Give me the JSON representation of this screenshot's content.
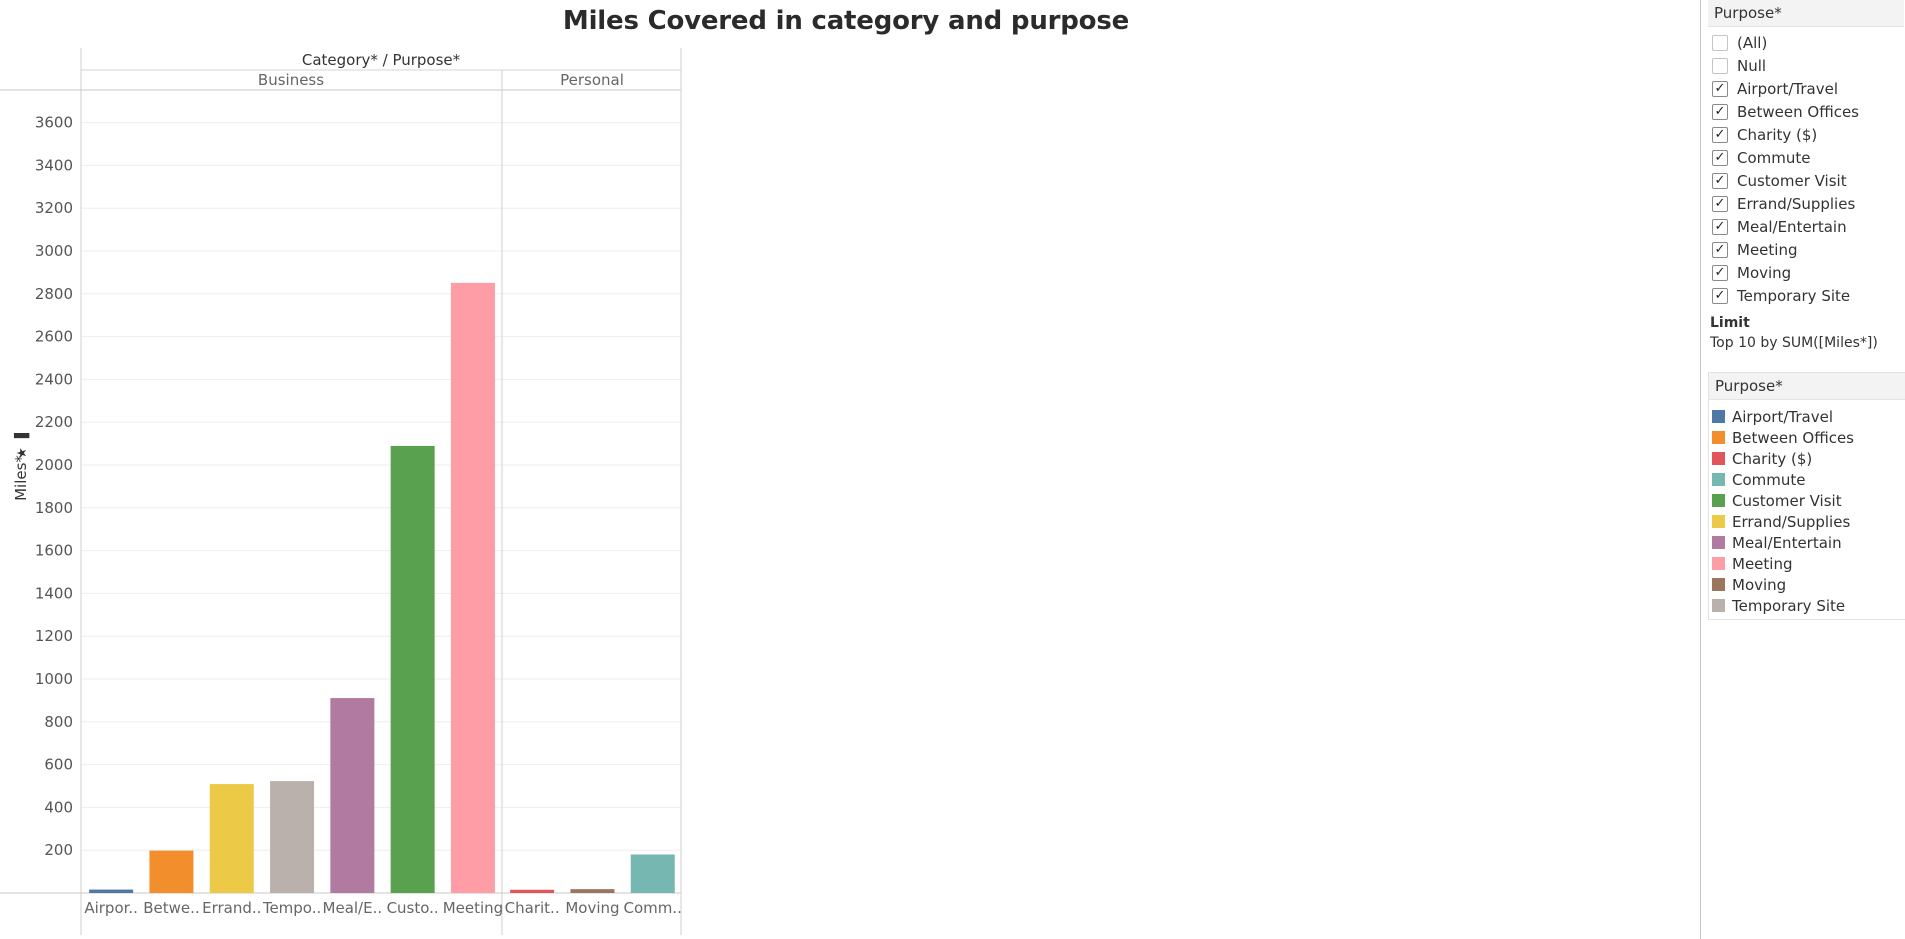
{
  "title": "Miles Covered in category and purpose",
  "header": {
    "column_title": "Category* / Purpose*",
    "categories": [
      "Business",
      "Personal"
    ]
  },
  "y_axis_label": "Miles*",
  "filter": {
    "title": "Purpose*",
    "items": [
      {
        "label": "(All)",
        "checked": false
      },
      {
        "label": "Null",
        "checked": false
      },
      {
        "label": "Airport/Travel",
        "checked": true
      },
      {
        "label": "Between Offices",
        "checked": true
      },
      {
        "label": "Charity ($)",
        "checked": true
      },
      {
        "label": "Commute",
        "checked": true
      },
      {
        "label": "Customer Visit",
        "checked": true
      },
      {
        "label": "Errand/Supplies",
        "checked": true
      },
      {
        "label": "Meal/Entertain",
        "checked": true
      },
      {
        "label": "Meeting",
        "checked": true
      },
      {
        "label": "Moving",
        "checked": true
      },
      {
        "label": "Temporary Site",
        "checked": true
      }
    ],
    "limit_label": "Limit",
    "limit_value": "Top 10 by SUM([Miles*])"
  },
  "legend": {
    "title": "Purpose*",
    "items": [
      {
        "label": "Airport/Travel",
        "color": "#4e79a7"
      },
      {
        "label": "Between Offices",
        "color": "#f28e2b"
      },
      {
        "label": "Charity ($)",
        "color": "#e15759"
      },
      {
        "label": "Commute",
        "color": "#76b7b2"
      },
      {
        "label": "Customer Visit",
        "color": "#59a14f"
      },
      {
        "label": "Errand/Supplies",
        "color": "#edc948"
      },
      {
        "label": "Meal/Entertain",
        "color": "#b07aa1"
      },
      {
        "label": "Meeting",
        "color": "#ff9da7"
      },
      {
        "label": "Moving",
        "color": "#9c755f"
      },
      {
        "label": "Temporary Site",
        "color": "#bab0ac"
      }
    ]
  },
  "chart_data": {
    "type": "bar",
    "title": "Miles Covered in category and purpose",
    "xlabel": "Category* / Purpose*",
    "ylabel": "Miles*",
    "ylim": [
      0,
      3800
    ],
    "yticks": [
      200,
      400,
      600,
      800,
      1000,
      1200,
      1400,
      1600,
      1800,
      2000,
      2200,
      2400,
      2600,
      2800,
      3000,
      3200,
      3400,
      3600
    ],
    "grid": true,
    "legend_position": "right",
    "panes": [
      {
        "category": "Business",
        "bars": [
          {
            "label": "Airpor..",
            "purpose": "Airport/Travel",
            "value": 16,
            "color": "#4e79a7"
          },
          {
            "label": "Betwe..",
            "purpose": "Between Offices",
            "value": 198,
            "color": "#f28e2b"
          },
          {
            "label": "Errand..",
            "purpose": "Errand/Supplies",
            "value": 509,
            "color": "#edc948"
          },
          {
            "label": "Tempo..",
            "purpose": "Temporary Site",
            "value": 523,
            "color": "#bab0ac"
          },
          {
            "label": "Meal/E..",
            "purpose": "Meal/Entertain",
            "value": 911,
            "color": "#b07aa1"
          },
          {
            "label": "Custo..",
            "purpose": "Customer Visit",
            "value": 2089,
            "color": "#59a14f"
          },
          {
            "label": "Meeting",
            "purpose": "Meeting",
            "value": 2851,
            "color": "#ff9da7"
          }
        ]
      },
      {
        "category": "Personal",
        "bars": [
          {
            "label": "Charit..",
            "purpose": "Charity ($)",
            "value": 15,
            "color": "#e15759"
          },
          {
            "label": "Moving",
            "purpose": "Moving",
            "value": 18,
            "color": "#9c755f"
          },
          {
            "label": "Comm..",
            "purpose": "Commute",
            "value": 180,
            "color": "#76b7b2"
          }
        ]
      }
    ]
  }
}
